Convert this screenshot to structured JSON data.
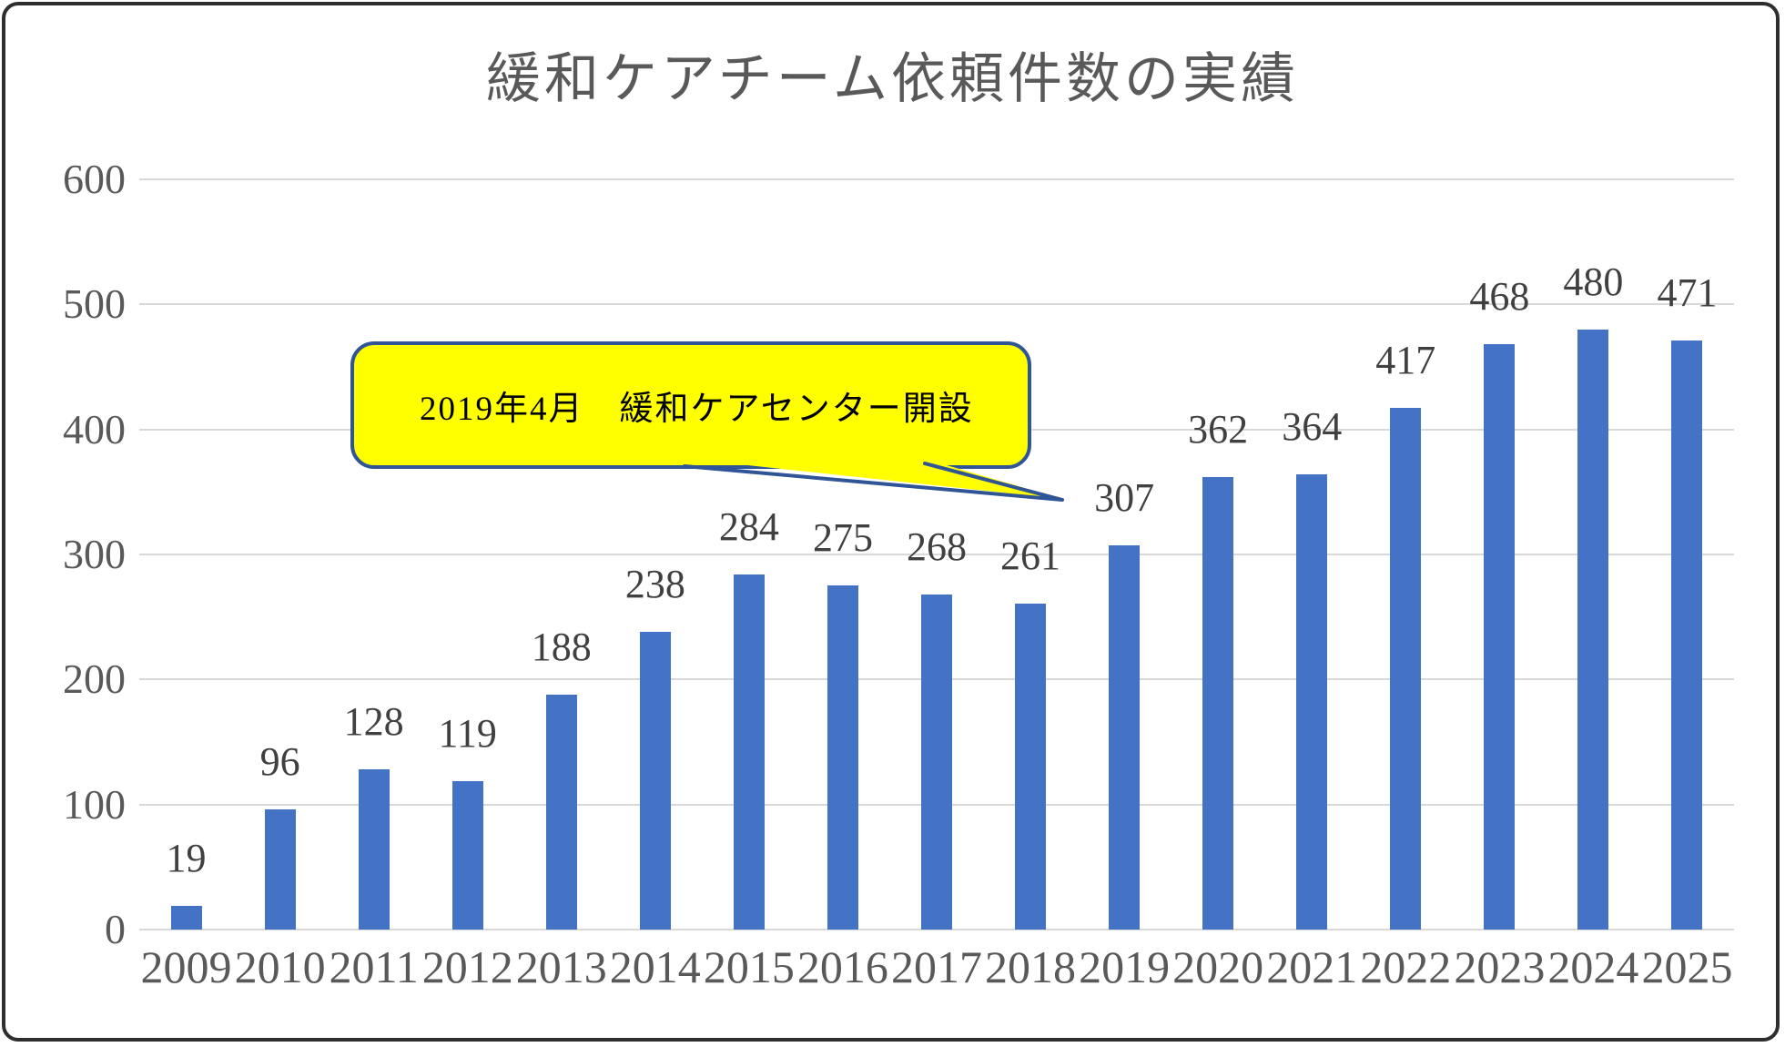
{
  "colors": {
    "bar": "#4472C4",
    "gridline": "#D9D9D9",
    "axis_text": "#595959",
    "value_text": "#404040",
    "title_text": "#595959",
    "callout_fill": "#FFFF00",
    "callout_border": "#2F5597",
    "frame_border": "#2e2e2e"
  },
  "chart_data": {
    "type": "bar",
    "title": "緩和ケアチーム依頼件数の実績",
    "categories": [
      "2009",
      "2010",
      "2011",
      "2012",
      "2013",
      "2014",
      "2015",
      "2016",
      "2017",
      "2018",
      "2019",
      "2020",
      "2021",
      "2022",
      "2023",
      "2024",
      "2025"
    ],
    "values": [
      19,
      96,
      128,
      119,
      188,
      238,
      284,
      275,
      268,
      261,
      307,
      362,
      364,
      417,
      468,
      480,
      471
    ],
    "xlabel": "",
    "ylabel": "",
    "ylim": [
      0,
      600
    ],
    "yticks": [
      0,
      100,
      200,
      300,
      400,
      500,
      600
    ],
    "grid": "horizontal",
    "legend": "none",
    "data_labels": "outside-end",
    "annotation": "2019年4月　緩和ケアセンター開設",
    "annotation_target_year": "2019"
  }
}
